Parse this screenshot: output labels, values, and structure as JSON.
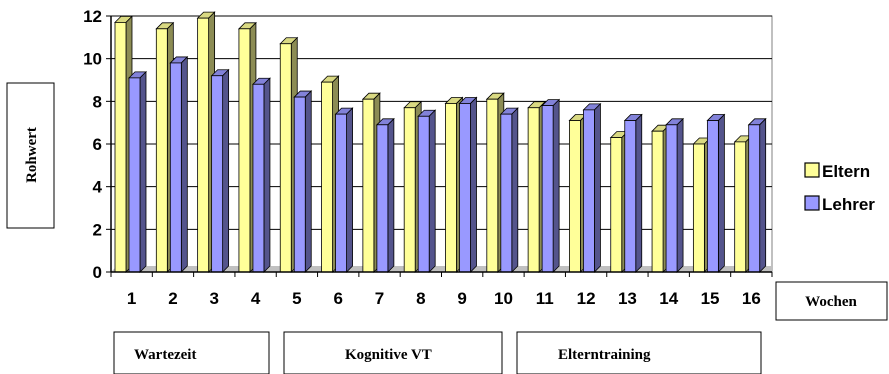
{
  "chart_data": {
    "type": "bar",
    "categories": [
      "1",
      "2",
      "3",
      "4",
      "5",
      "6",
      "7",
      "8",
      "9",
      "10",
      "11",
      "12",
      "13",
      "14",
      "15",
      "16"
    ],
    "series": [
      {
        "name": "Eltern",
        "color": "#ffff99",
        "values": [
          11.7,
          11.4,
          11.9,
          11.4,
          10.7,
          8.9,
          8.1,
          7.7,
          7.9,
          8.1,
          7.7,
          7.1,
          6.3,
          6.6,
          6.0,
          6.1
        ]
      },
      {
        "name": "Lehrer",
        "color": "#9999ff",
        "values": [
          9.1,
          9.8,
          9.2,
          8.8,
          8.2,
          7.4,
          6.9,
          7.3,
          7.9,
          7.4,
          7.8,
          7.6,
          7.1,
          6.9,
          7.1,
          6.9
        ]
      }
    ],
    "ylabel": "Rohwert",
    "xlabel": "Wochen",
    "ylim": [
      0,
      12
    ],
    "yticks": [
      "0",
      "2",
      "4",
      "6",
      "8",
      "10",
      "12"
    ],
    "grid": true,
    "legend_position": "right",
    "phases": [
      {
        "label": "Wartezeit",
        "from": 1,
        "to": 4
      },
      {
        "label": "Kognitive VT",
        "from": 5,
        "to": 10
      },
      {
        "label": "Elterntraining",
        "from": 11,
        "to": 16
      }
    ]
  }
}
